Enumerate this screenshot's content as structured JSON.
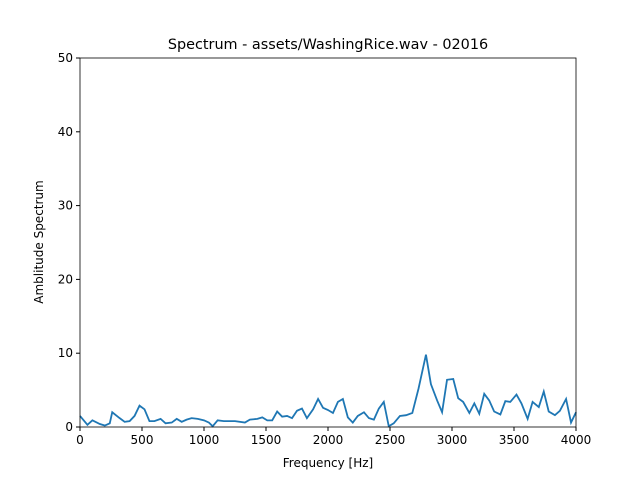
{
  "chart_data": {
    "type": "line",
    "title": "Spectrum - assets/WashingRice.wav - 02016",
    "x_label": "Frequency [Hz]",
    "y_label": "Amblitude Spectrum",
    "x": [
      0,
      60,
      100,
      160,
      200,
      240,
      260,
      320,
      360,
      400,
      440,
      480,
      520,
      560,
      600,
      650,
      690,
      740,
      780,
      820,
      860,
      900,
      950,
      1000,
      1040,
      1070,
      1110,
      1160,
      1250,
      1330,
      1370,
      1430,
      1470,
      1510,
      1550,
      1590,
      1630,
      1670,
      1710,
      1750,
      1790,
      1830,
      1880,
      1920,
      1960,
      2000,
      2040,
      2080,
      2120,
      2160,
      2200,
      2240,
      2290,
      2330,
      2370,
      2410,
      2450,
      2490,
      2530,
      2580,
      2630,
      2680,
      2730,
      2790,
      2830,
      2880,
      2920,
      2960,
      3010,
      3050,
      3090,
      3140,
      3180,
      3220,
      3260,
      3300,
      3340,
      3390,
      3430,
      3470,
      3520,
      3560,
      3610,
      3650,
      3700,
      3740,
      3780,
      3830,
      3870,
      3920,
      3960,
      4000
    ],
    "series": [
      {
        "name": "spectrum",
        "color": "#1f77b4",
        "values": [
          1.5,
          0.3,
          0.9,
          0.4,
          0.2,
          0.5,
          2.0,
          1.2,
          0.7,
          0.8,
          1.5,
          2.9,
          2.4,
          0.8,
          0.8,
          1.1,
          0.5,
          0.6,
          1.1,
          0.7,
          1.0,
          1.2,
          1.1,
          0.9,
          0.6,
          0.1,
          0.9,
          0.8,
          0.8,
          0.6,
          1.0,
          1.1,
          1.3,
          0.9,
          0.9,
          2.1,
          1.4,
          1.5,
          1.2,
          2.2,
          2.5,
          1.2,
          2.4,
          3.8,
          2.6,
          2.3,
          1.9,
          3.4,
          3.8,
          1.3,
          0.6,
          1.5,
          2.0,
          1.2,
          1.0,
          2.5,
          3.4,
          0.1,
          0.5,
          1.5,
          1.6,
          1.9,
          5.2,
          9.8,
          5.8,
          3.6,
          2.0,
          6.4,
          6.5,
          3.9,
          3.4,
          1.9,
          3.2,
          1.8,
          4.5,
          3.6,
          2.1,
          1.7,
          3.5,
          3.4,
          4.4,
          3.2,
          1.1,
          3.4,
          2.7,
          4.8,
          2.1,
          1.6,
          2.2,
          3.8,
          0.6,
          2.0
        ]
      }
    ],
    "xlim": [
      0,
      4000
    ],
    "xticks": [
      0,
      500,
      1000,
      1500,
      2000,
      2500,
      3000,
      3500,
      4000
    ],
    "ylim": [
      0,
      50
    ],
    "yticks": [
      0,
      10,
      20,
      30,
      40,
      50
    ]
  }
}
